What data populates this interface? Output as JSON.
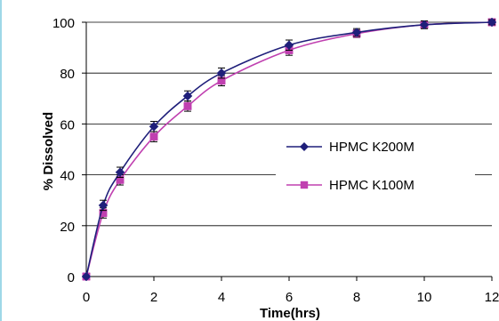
{
  "chart_data": {
    "type": "line",
    "title": "",
    "xlabel": "Time(hrs)",
    "ylabel": "% Dissolved",
    "xlim": [
      0,
      12
    ],
    "ylim": [
      0,
      100
    ],
    "xticks": [
      0,
      2,
      4,
      6,
      8,
      10,
      12
    ],
    "yticks": [
      0,
      20,
      40,
      60,
      80,
      100
    ],
    "grid": "horizontal",
    "legend_position": "center-right",
    "series": [
      {
        "name": "HPMC K200M",
        "color": "#1f1f7a",
        "marker": "diamond",
        "x": [
          0,
          0.5,
          1,
          2,
          3,
          4,
          6,
          8,
          10,
          12
        ],
        "y": [
          0,
          28,
          41,
          59,
          71,
          80,
          91,
          96,
          99,
          100
        ],
        "error": [
          0,
          2,
          2,
          2,
          2,
          2,
          2,
          1.5,
          1.5,
          1
        ]
      },
      {
        "name": "HPMC K100M",
        "color": "#c040b0",
        "marker": "square",
        "x": [
          0,
          0.5,
          1,
          2,
          3,
          4,
          6,
          8,
          10,
          12
        ],
        "y": [
          0,
          25,
          38,
          55,
          67,
          77,
          89,
          95.5,
          99,
          100
        ],
        "error": [
          0,
          2,
          2,
          2,
          2,
          2,
          2,
          1.5,
          1.5,
          1
        ]
      }
    ]
  }
}
